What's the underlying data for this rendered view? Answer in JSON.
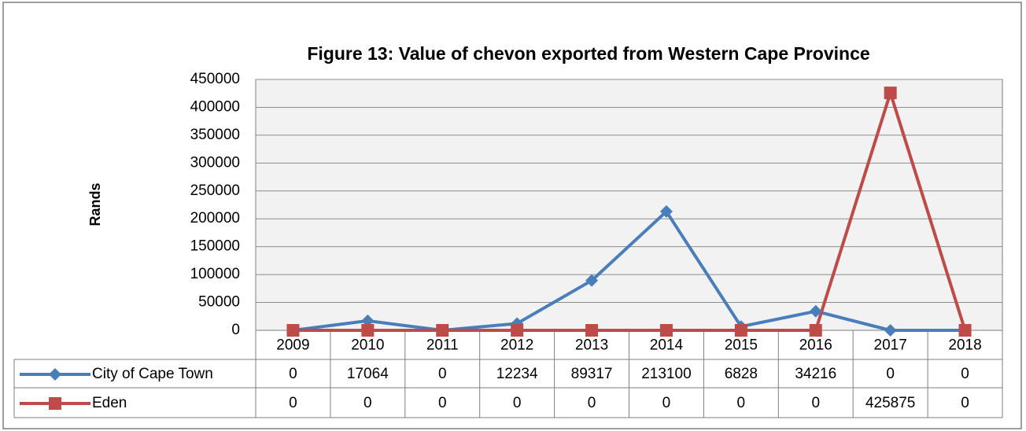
{
  "chart_data": {
    "type": "line",
    "title": "Figure 13: Value of chevon exported from Western Cape Province",
    "y_label": "Rands",
    "categories": [
      "2009",
      "2010",
      "2011",
      "2012",
      "2013",
      "2014",
      "2015",
      "2016",
      "2017",
      "2018"
    ],
    "series": [
      {
        "name": "City of Cape Town",
        "color": "#4a7ebb",
        "marker": "diamond",
        "values": [
          0,
          17064,
          0,
          12234,
          89317,
          213100,
          6828,
          34216,
          0,
          0
        ]
      },
      {
        "name": "Eden",
        "color": "#be4b48",
        "marker": "square",
        "values": [
          0,
          0,
          0,
          0,
          0,
          0,
          0,
          0,
          425875,
          0
        ]
      }
    ],
    "ylim": [
      0,
      450000
    ],
    "yticks": [
      0,
      50000,
      100000,
      150000,
      200000,
      250000,
      300000,
      350000,
      400000,
      450000
    ],
    "grid": true,
    "data_table": true
  }
}
